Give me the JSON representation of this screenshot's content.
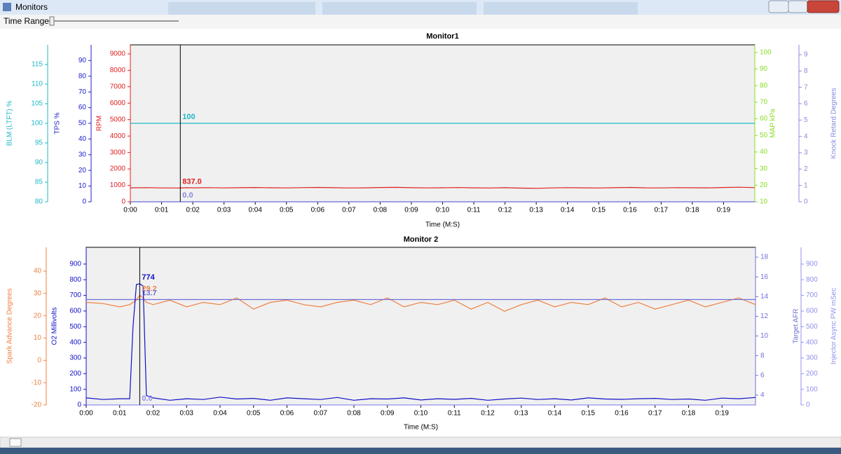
{
  "window": {
    "title": "Monitors",
    "time_range_label": "Time Range"
  },
  "chart_data": [
    {
      "type": "line",
      "title": "Monitor1",
      "x_label": "Time (M:S)",
      "xlim": [
        0,
        20
      ],
      "xticks": [
        {
          "value": 0,
          "label": "0:00"
        },
        {
          "value": 1,
          "label": "0:01"
        },
        {
          "value": 2,
          "label": "0:02"
        },
        {
          "value": 3,
          "label": "0:03"
        },
        {
          "value": 4,
          "label": "0:04"
        },
        {
          "value": 5,
          "label": "0:05"
        },
        {
          "value": 6,
          "label": "0:06"
        },
        {
          "value": 7,
          "label": "0:07"
        },
        {
          "value": 8,
          "label": "0:08"
        },
        {
          "value": 9,
          "label": "0:09"
        },
        {
          "value": 10,
          "label": "0:10"
        },
        {
          "value": 11,
          "label": "0:11"
        },
        {
          "value": 12,
          "label": "0:12"
        },
        {
          "value": 13,
          "label": "0:13"
        },
        {
          "value": 14,
          "label": "0:14"
        },
        {
          "value": 15,
          "label": "0:15"
        },
        {
          "value": 16,
          "label": "0:16"
        },
        {
          "value": 17,
          "label": "0:17"
        },
        {
          "value": 18,
          "label": "0:18"
        },
        {
          "value": 19,
          "label": "0:19"
        }
      ],
      "cursor_x": 1.6,
      "x": [
        0,
        0.5,
        1,
        1.3,
        1.4,
        1.5,
        1.6,
        1.7,
        1.8,
        2,
        2.5,
        3,
        3.5,
        4,
        4.5,
        5,
        5.5,
        6,
        6.5,
        7,
        7.5,
        8,
        8.5,
        9,
        9.5,
        10,
        10.5,
        11,
        11.5,
        12,
        12.5,
        13,
        13.5,
        14,
        14.5,
        15,
        15.5,
        16,
        16.5,
        17,
        17.5,
        18,
        18.5,
        19,
        19.5,
        20
      ],
      "y_axes": [
        {
          "label": "BLM (LTFT) %",
          "color": "#20b8c8",
          "side": "left",
          "ylim": [
            80,
            120
          ],
          "yticks": [
            80,
            85,
            90,
            95,
            100,
            105,
            110,
            115
          ]
        },
        {
          "label": "TPS %",
          "color": "#2020c8",
          "side": "left",
          "ylim": [
            0,
            100
          ],
          "yticks": [
            0,
            10,
            20,
            30,
            40,
            50,
            60,
            70,
            80,
            90
          ]
        },
        {
          "label": "RPM",
          "color": "#e02020",
          "side": "left",
          "ylim": [
            0,
            9550
          ],
          "yticks": [
            0,
            1000,
            2000,
            3000,
            4000,
            5000,
            6000,
            7000,
            8000,
            9000
          ]
        },
        {
          "label": "MAP kPa",
          "color": "#88dd22",
          "side": "right",
          "ylim": [
            10,
            104.6
          ],
          "yticks": [
            10,
            20,
            30,
            40,
            50,
            60,
            70,
            80,
            90,
            100
          ]
        },
        {
          "label": "Knock Retard Degrees",
          "color": "#8888e0",
          "side": "right",
          "ylim": [
            0,
            9.6
          ],
          "yticks": [
            0,
            1,
            2,
            3,
            4,
            5,
            6,
            7,
            8,
            9
          ]
        }
      ],
      "series": [
        {
          "name": "BLM (LTFT) %",
          "axis": 0,
          "color": "#20b8c8",
          "x": [
            0,
            20
          ],
          "values": [
            100,
            100
          ],
          "cursor_label": "100"
        },
        {
          "name": "TPS %",
          "axis": 1,
          "color": "#2020c8",
          "x": [
            0,
            20
          ],
          "values": [
            0,
            0
          ]
        },
        {
          "name": "RPM",
          "axis": 2,
          "color": "#e02020",
          "values": [
            850,
            860,
            845,
            840,
            838,
            842,
            837,
            850,
            855,
            848,
            862,
            845,
            858,
            870,
            852,
            846,
            860,
            875,
            855,
            840,
            850,
            868,
            880,
            858,
            845,
            852,
            866,
            848,
            840,
            855,
            830,
            820,
            845,
            860,
            850,
            838,
            858,
            872,
            850,
            845,
            860,
            852,
            848,
            870,
            885,
            862
          ],
          "cursor_label": "837.0"
        },
        {
          "name": "Knock Retard Degrees",
          "axis": 4,
          "color": "#8888e0",
          "x": [
            0,
            20
          ],
          "values": [
            0,
            0
          ],
          "cursor_label": "0.0"
        }
      ]
    },
    {
      "type": "line",
      "title": "Monitor 2",
      "x_label": "Time (M:S)",
      "xlim": [
        0,
        20
      ],
      "xticks": [
        {
          "value": 0,
          "label": "0:00"
        },
        {
          "value": 1,
          "label": "0:01"
        },
        {
          "value": 2,
          "label": "0:02"
        },
        {
          "value": 3,
          "label": "0:03"
        },
        {
          "value": 4,
          "label": "0:04"
        },
        {
          "value": 5,
          "label": "0:05"
        },
        {
          "value": 6,
          "label": "0:06"
        },
        {
          "value": 7,
          "label": "0:07"
        },
        {
          "value": 8,
          "label": "0:08"
        },
        {
          "value": 9,
          "label": "0:09"
        },
        {
          "value": 10,
          "label": "0:10"
        },
        {
          "value": 11,
          "label": "0:11"
        },
        {
          "value": 12,
          "label": "0:12"
        },
        {
          "value": 13,
          "label": "0:13"
        },
        {
          "value": 14,
          "label": "0:14"
        },
        {
          "value": 15,
          "label": "0:15"
        },
        {
          "value": 16,
          "label": "0:16"
        },
        {
          "value": 17,
          "label": "0:17"
        },
        {
          "value": 18,
          "label": "0:18"
        },
        {
          "value": 19,
          "label": "0:19"
        }
      ],
      "cursor_x": 1.6,
      "x": [
        0,
        0.5,
        1,
        1.3,
        1.4,
        1.5,
        1.6,
        1.7,
        1.8,
        2,
        2.5,
        3,
        3.5,
        4,
        4.5,
        5,
        5.5,
        6,
        6.5,
        7,
        7.5,
        8,
        8.5,
        9,
        9.5,
        10,
        10.5,
        11,
        11.5,
        12,
        12.5,
        13,
        13.5,
        14,
        14.5,
        15,
        15.5,
        16,
        16.5,
        17,
        17.5,
        18,
        18.5,
        19,
        19.5,
        20
      ],
      "y_axes": [
        {
          "label": "Spark Advance Degrees",
          "color": "#f08040",
          "side": "left",
          "ylim": [
            -20,
            50.7
          ],
          "yticks": [
            -20,
            -10,
            0,
            10,
            20,
            30,
            40
          ]
        },
        {
          "label": "O2 Millivolts",
          "color": "#1010c8",
          "side": "left",
          "ylim": [
            0,
            1007
          ],
          "yticks": [
            0,
            100,
            200,
            300,
            400,
            500,
            600,
            700,
            800,
            900
          ]
        },
        {
          "label": "Target AFR",
          "color": "#7070d8",
          "side": "right",
          "ylim": [
            3,
            19
          ],
          "yticks": [
            4,
            6,
            8,
            10,
            12,
            14,
            16,
            18
          ]
        },
        {
          "label": "Injector Async PW mSec",
          "color": "#9090ee",
          "side": "right",
          "ylim": [
            0,
            1007
          ],
          "yticks": [
            0,
            100,
            200,
            300,
            400,
            500,
            600,
            700,
            800,
            900
          ]
        }
      ],
      "series": [
        {
          "name": "Spark Advance Degrees",
          "axis": 0,
          "color": "#f08040",
          "values": [
            26,
            25.5,
            24,
            25,
            26,
            27,
            29.2,
            28,
            26,
            25,
            27,
            24,
            26,
            25,
            28,
            23,
            26,
            27,
            25,
            24,
            26,
            27,
            25,
            28,
            24,
            26,
            25,
            27,
            23,
            26,
            22,
            25,
            27,
            24,
            26,
            25,
            28,
            24,
            26,
            23,
            25,
            27,
            24,
            26,
            28,
            25
          ],
          "cursor_label": "29.2"
        },
        {
          "name": "Target AFR",
          "axis": 2,
          "color": "#7070d8",
          "x": [
            0,
            20
          ],
          "values": [
            13.7,
            13.7
          ],
          "cursor_label": "13.7"
        },
        {
          "name": "O2 Millivolts",
          "axis": 1,
          "color": "#1010c8",
          "values": [
            45,
            35,
            40,
            40,
            500,
            770,
            774,
            760,
            60,
            45,
            30,
            40,
            35,
            50,
            38,
            42,
            30,
            45,
            40,
            35,
            48,
            30,
            40,
            38,
            45,
            32,
            40,
            36,
            42,
            30,
            38,
            44,
            35,
            40,
            32,
            45,
            38,
            36,
            40,
            42,
            35,
            38,
            30,
            44,
            40,
            48
          ],
          "cursor_label": "774"
        },
        {
          "name": "Injector Async PW mSec",
          "axis": 3,
          "color": "#9090ee",
          "x": [
            0,
            20
          ],
          "values": [
            0,
            0
          ],
          "cursor_label": "0.0"
        }
      ]
    }
  ]
}
